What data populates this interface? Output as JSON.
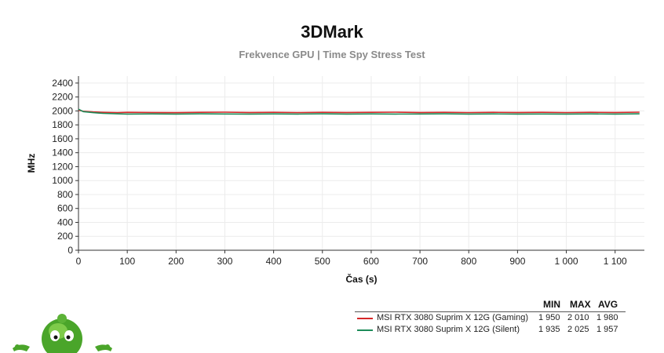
{
  "chart_data": {
    "type": "line",
    "title": "3DMark",
    "subtitle": "Frekvence GPU | Time Spy Stress Test",
    "xlabel": "Čas (s)",
    "ylabel": "MHz",
    "xlim": [
      0,
      1160
    ],
    "ylim": [
      0,
      2500
    ],
    "x_ticks": [
      0,
      100,
      200,
      300,
      400,
      500,
      600,
      700,
      800,
      900,
      1000,
      1100
    ],
    "x_tick_labels": [
      "0",
      "100",
      "200",
      "300",
      "400",
      "500",
      "600",
      "700",
      "800",
      "900",
      "1 000",
      "1 100"
    ],
    "y_ticks": [
      0,
      200,
      400,
      600,
      800,
      1000,
      1200,
      1400,
      1600,
      1800,
      2000,
      2200,
      2400
    ],
    "grid": true,
    "legend_placement": "bottom-right",
    "series": [
      {
        "name": "MSI RTX 3080 Suprim X 12G (Gaming)",
        "color": "#d62728",
        "x": [
          0,
          10,
          30,
          50,
          80,
          100,
          150,
          200,
          250,
          300,
          350,
          400,
          450,
          500,
          550,
          600,
          650,
          700,
          750,
          800,
          850,
          900,
          950,
          1000,
          1050,
          1100,
          1150
        ],
        "y": [
          2010,
          1995,
          1985,
          1980,
          1975,
          1980,
          1978,
          1975,
          1980,
          1982,
          1978,
          1980,
          1976,
          1980,
          1978,
          1980,
          1982,
          1978,
          1980,
          1976,
          1980,
          1978,
          1980,
          1976,
          1980,
          1978,
          1982
        ],
        "min": "1 950",
        "max": "2 010",
        "avg": "1 980"
      },
      {
        "name": "MSI RTX 3080 Suprim X 12G (Silent)",
        "color": "#1e8c5a",
        "x": [
          0,
          10,
          30,
          50,
          80,
          100,
          150,
          200,
          250,
          300,
          350,
          400,
          450,
          500,
          550,
          600,
          650,
          700,
          750,
          800,
          850,
          900,
          950,
          1000,
          1050,
          1100,
          1150
        ],
        "y": [
          2025,
          1990,
          1975,
          1965,
          1958,
          1955,
          1957,
          1955,
          1958,
          1956,
          1955,
          1957,
          1955,
          1958,
          1955,
          1957,
          1955,
          1956,
          1958,
          1955,
          1957,
          1955,
          1956,
          1955,
          1957,
          1955,
          1958
        ],
        "min": "1 935",
        "max": "2 025",
        "avg": "1 957"
      }
    ],
    "legend_headers": {
      "min": "MIN",
      "max": "MAX",
      "avg": "AVG"
    }
  }
}
